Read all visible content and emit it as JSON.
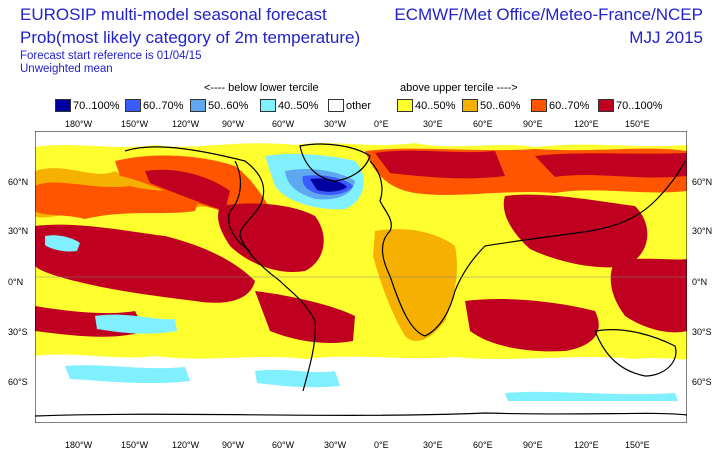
{
  "header": {
    "title_line1": "EUROSIP multi-model seasonal forecast",
    "title_line2": "Prob(most likely category of 2m temperature)",
    "subtitle_line1": "Forecast start reference is 01/04/15",
    "subtitle_line2": "Unweighted mean",
    "right_line1": "ECMWF/Met Office/Meteo-France/NCEP",
    "right_line2": "MJJ 2015"
  },
  "legend": {
    "below_note": "<---- below lower tercile",
    "above_note": "above upper tercile ---->",
    "items": [
      {
        "label": "70..100%",
        "color": "#0000a0"
      },
      {
        "label": "60..70%",
        "color": "#3a5cff"
      },
      {
        "label": "50..60%",
        "color": "#5fa8f0"
      },
      {
        "label": "40..50%",
        "color": "#80f0ff"
      },
      {
        "label": "other",
        "color": "#ffffff"
      },
      {
        "label": "40..50%",
        "color": "#ffff30"
      },
      {
        "label": "50..60%",
        "color": "#f5b000"
      },
      {
        "label": "60..70%",
        "color": "#ff5500"
      },
      {
        "label": "70..100%",
        "color": "#c00020"
      }
    ]
  },
  "axes": {
    "lon_labels": [
      "180°W",
      "150°W",
      "120°W",
      "90°W",
      "60°W",
      "30°W",
      "0°E",
      "30°E",
      "60°E",
      "90°E",
      "120°E",
      "150°E"
    ],
    "lat_labels": [
      "60°N",
      "30°N",
      "0°N",
      "30°S",
      "60°S"
    ]
  }
}
